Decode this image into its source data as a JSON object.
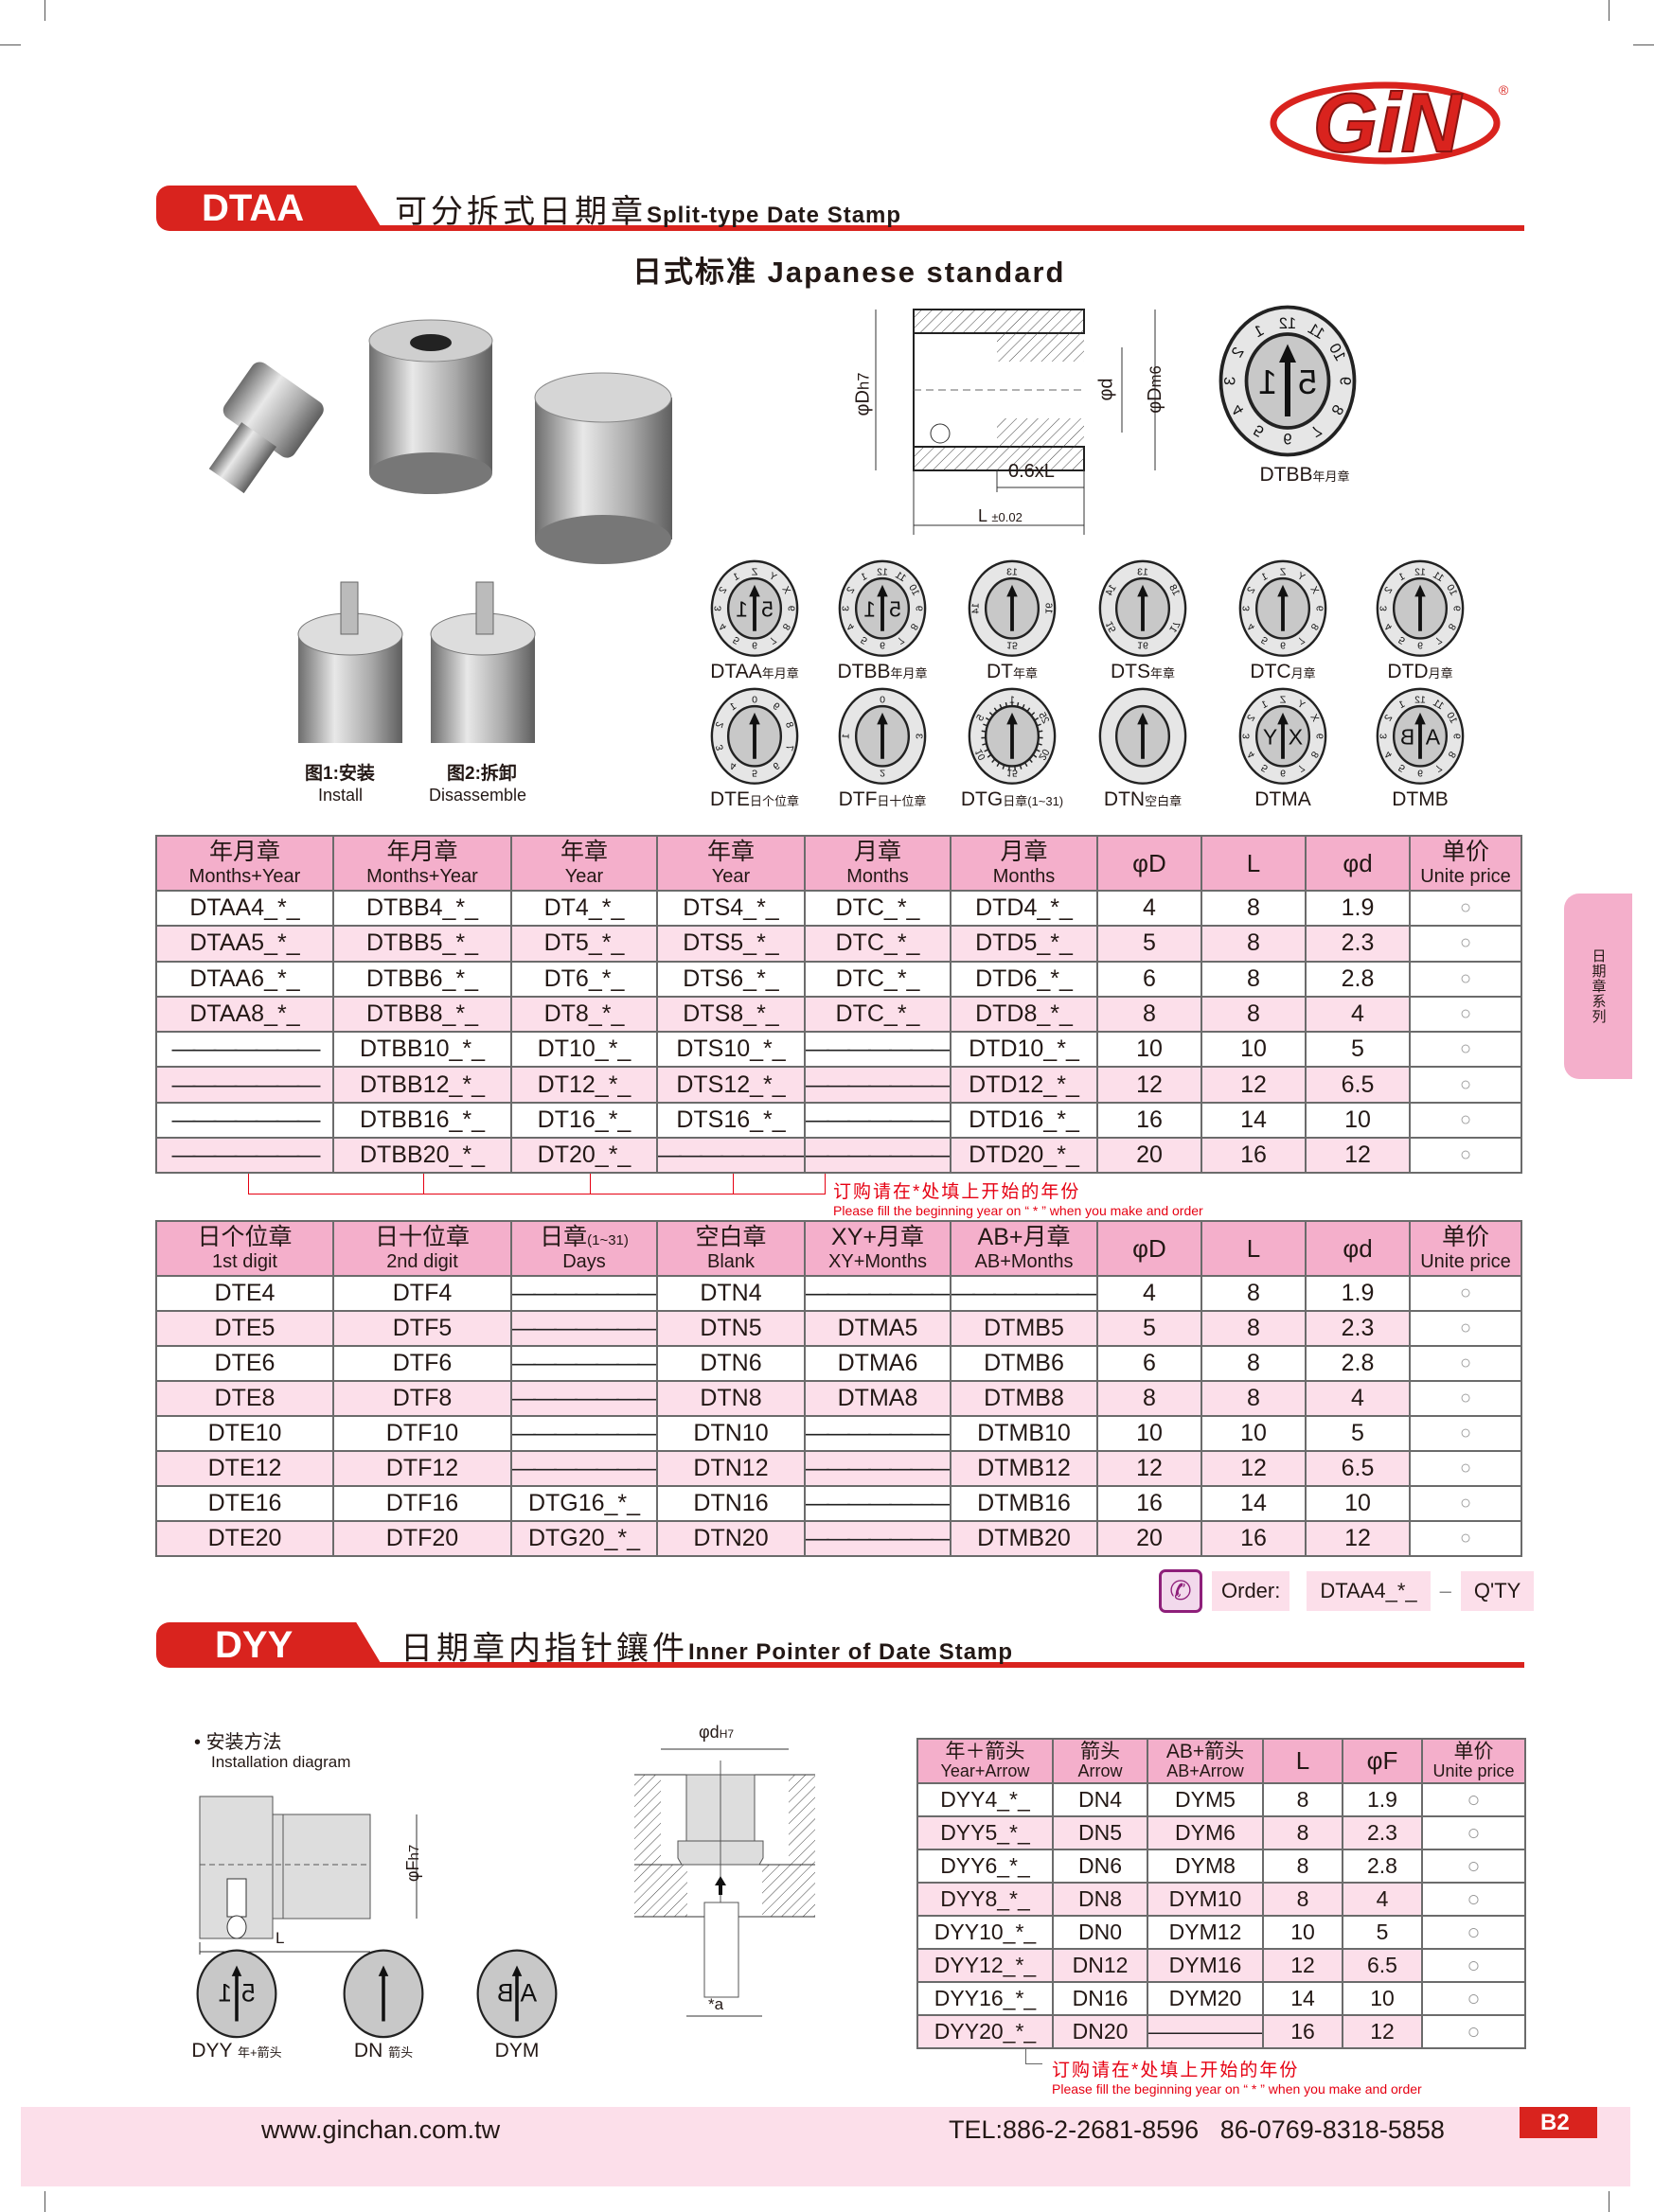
{
  "brand": {
    "logo_text": "GiN",
    "registered": "®"
  },
  "section1": {
    "code": "DTAA",
    "title_cn": "可分拆式日期章",
    "title_en": "Split-type Date Stamp",
    "subtitle": "日式标准 Japanese standard"
  },
  "photos": {
    "install_cn": "图1:安装",
    "install_en": "Install",
    "disassemble_cn": "图2:拆卸",
    "disassemble_en": "Disassemble"
  },
  "drawing": {
    "dh7": "φD",
    "dh7_sub": "h7",
    "dm6": "φD",
    "dm6_sub": "m6",
    "d": "φd",
    "len06": "0.6xL",
    "L": "L",
    "L_tol": "±0.02"
  },
  "big_dial": {
    "code": "DTBB",
    "desc": "年月章",
    "ring": [
      "12",
      "11",
      "10",
      "9",
      "8",
      "7",
      "6",
      "5",
      "4",
      "3",
      "2",
      "1"
    ],
    "center": [
      "1",
      "5"
    ]
  },
  "dials": [
    {
      "code": "DTAA",
      "desc": "年月章",
      "ring": [
        "Z",
        "Y",
        "X",
        "9",
        "8",
        "7",
        "6",
        "5",
        "4",
        "3",
        "2",
        "1"
      ],
      "center": [
        "1",
        "5"
      ]
    },
    {
      "code": "DTBB",
      "desc": "年月章",
      "ring": [
        "12",
        "11",
        "10",
        "9",
        "8",
        "7",
        "6",
        "5",
        "4",
        "3",
        "2",
        "1"
      ],
      "center": [
        "1",
        "5"
      ]
    },
    {
      "code": "DT",
      "desc": "年章",
      "ring": [
        "13",
        "16",
        "15",
        "14"
      ],
      "center": []
    },
    {
      "code": "DTS",
      "desc": "年章",
      "ring": [
        "13",
        "18",
        "17",
        "16",
        "15",
        "14"
      ],
      "center": []
    },
    {
      "code": "DTC",
      "desc": "月章",
      "ring": [
        "Z",
        "Y",
        "X",
        "9",
        "8",
        "7",
        "6",
        "5",
        "4",
        "3",
        "2",
        "1"
      ],
      "center": []
    },
    {
      "code": "DTD",
      "desc": "月章",
      "ring": [
        "12",
        "11",
        "10",
        "9",
        "8",
        "7",
        "6",
        "5",
        "4",
        "3",
        "2",
        "1"
      ],
      "center": []
    },
    {
      "code": "DTE",
      "desc": "日个位章",
      "ring": [
        "0",
        "9",
        "8",
        "7",
        "6",
        "5",
        "4",
        "3",
        "2",
        "1"
      ],
      "center": []
    },
    {
      "code": "DTF",
      "desc": "日十位章",
      "ring": [
        "0",
        "3",
        "2",
        "1"
      ],
      "center": []
    },
    {
      "code": "DTG",
      "desc": "日章(1~31)",
      "ring": [
        "1",
        "25",
        "20",
        "15",
        "10",
        "5"
      ],
      "center": [],
      "ticks": true
    },
    {
      "code": "DTN",
      "desc": "空白章",
      "ring": [],
      "center": []
    },
    {
      "code": "DTMA",
      "desc": "",
      "ring": [
        "Z",
        "Y",
        "X",
        "9",
        "8",
        "7",
        "6",
        "5",
        "4",
        "3",
        "2",
        "1"
      ],
      "center": [
        "Y",
        "X"
      ]
    },
    {
      "code": "DTMB",
      "desc": "",
      "ring": [
        "12",
        "11",
        "10",
        "9",
        "8",
        "7",
        "6",
        "5",
        "4",
        "3",
        "2",
        "1"
      ],
      "center": [
        "B",
        "A"
      ]
    }
  ],
  "table1": {
    "headers": [
      {
        "cn": "年月章",
        "en": "Months+Year"
      },
      {
        "cn": "年月章",
        "en": "Months+Year"
      },
      {
        "cn": "年章",
        "en": "Year"
      },
      {
        "cn": "年章",
        "en": "Year"
      },
      {
        "cn": "月章",
        "en": "Months"
      },
      {
        "cn": "月章",
        "en": "Months"
      },
      {
        "single": "φD"
      },
      {
        "single": "L"
      },
      {
        "single": "φd"
      },
      {
        "cn": "单价",
        "en": "Unite price"
      }
    ],
    "rows": [
      [
        "DTAA4_*_",
        "DTBB4_*_",
        "DT4_*_",
        "DTS4_*_",
        "DTC_*_",
        "DTD4_*_",
        "4",
        "8",
        "1.9",
        "○"
      ],
      [
        "DTAA5_*_",
        "DTBB5_*_",
        "DT5_*_",
        "DTS5_*_",
        "DTC_*_",
        "DTD5_*_",
        "5",
        "8",
        "2.3",
        "○"
      ],
      [
        "DTAA6_*_",
        "DTBB6_*_",
        "DT6_*_",
        "DTS6_*_",
        "DTC_*_",
        "DTD6_*_",
        "6",
        "8",
        "2.8",
        "○"
      ],
      [
        "DTAA8_*_",
        "DTBB8_*_",
        "DT8_*_",
        "DTS8_*_",
        "DTC_*_",
        "DTD8_*_",
        "8",
        "8",
        "4",
        "○"
      ],
      [
        "———————",
        "DTBB10_*_",
        "DT10_*_",
        "DTS10_*_",
        "———————",
        "DTD10_*_",
        "10",
        "10",
        "5",
        "○"
      ],
      [
        "———————",
        "DTBB12_*_",
        "DT12_*_",
        "DTS12_*_",
        "———————",
        "DTD12_*_",
        "12",
        "12",
        "6.5",
        "○"
      ],
      [
        "———————",
        "DTBB16_*_",
        "DT16_*_",
        "DTS16_*_",
        "———————",
        "DTD16_*_",
        "16",
        "14",
        "10",
        "○"
      ],
      [
        "———————",
        "DTBB20_*_",
        "DT20_*_",
        "———————",
        "———————",
        "DTD20_*_",
        "20",
        "16",
        "12",
        "○"
      ]
    ]
  },
  "note": {
    "cn": "订购请在*处填上开始的年份",
    "en": "Please fill the beginning year on “ * ” when you make and order"
  },
  "table2": {
    "headers": [
      {
        "cn": "日个位章",
        "en": "1st digit"
      },
      {
        "cn": "日十位章",
        "en": "2nd digit"
      },
      {
        "cn": "日章",
        "cn_small": "(1~31)",
        "en": "Days"
      },
      {
        "cn": "空白章",
        "en": "Blank"
      },
      {
        "cn": "XY+月章",
        "en": "XY+Months"
      },
      {
        "cn": "AB+月章",
        "en": "AB+Months"
      },
      {
        "single": "φD"
      },
      {
        "single": "L"
      },
      {
        "single": "φd"
      },
      {
        "cn": "单价",
        "en": "Unite price"
      }
    ],
    "rows": [
      [
        "DTE4",
        "DTF4",
        "———————",
        "DTN4",
        "———————",
        "———————",
        "4",
        "8",
        "1.9",
        "○"
      ],
      [
        "DTE5",
        "DTF5",
        "———————",
        "DTN5",
        "DTMA5",
        "DTMB5",
        "5",
        "8",
        "2.3",
        "○"
      ],
      [
        "DTE6",
        "DTF6",
        "———————",
        "DTN6",
        "DTMA6",
        "DTMB6",
        "6",
        "8",
        "2.8",
        "○"
      ],
      [
        "DTE8",
        "DTF8",
        "———————",
        "DTN8",
        "DTMA8",
        "DTMB8",
        "8",
        "8",
        "4",
        "○"
      ],
      [
        "DTE10",
        "DTF10",
        "———————",
        "DTN10",
        "———————",
        "DTMB10",
        "10",
        "10",
        "5",
        "○"
      ],
      [
        "DTE12",
        "DTF12",
        "———————",
        "DTN12",
        "———————",
        "DTMB12",
        "12",
        "12",
        "6.5",
        "○"
      ],
      [
        "DTE16",
        "DTF16",
        "DTG16_*_",
        "DTN16",
        "———————",
        "DTMB16",
        "16",
        "14",
        "10",
        "○"
      ],
      [
        "DTE20",
        "DTF20",
        "DTG20_*_",
        "DTN20",
        "———————",
        "DTMB20",
        "20",
        "16",
        "12",
        "○"
      ]
    ]
  },
  "order": {
    "label": "Order:",
    "example": "DTAA4_*_",
    "dash": "–",
    "qty": "Q'TY",
    "icon": "phone-icon",
    "accent": "#8e1f7a"
  },
  "section2": {
    "code": "DYY",
    "title_cn": "日期章内指针鑲件",
    "title_en": "Inner Pointer of Date Stamp"
  },
  "install": {
    "cn": "安装方法",
    "en": "Installation diagram",
    "fh7": "φF",
    "fh7_sub": "h7",
    "L": "L"
  },
  "section_diagram": {
    "dh7": "φd",
    "dh7_sub": "H7",
    "a": "*a"
  },
  "inner_dials": [
    {
      "code": "DYY",
      "desc": "年+箭头",
      "center": [
        "1",
        "5"
      ]
    },
    {
      "code": "DN",
      "desc": "箭头",
      "center": []
    },
    {
      "code": "DYM",
      "desc": "",
      "center": [
        "B",
        "A"
      ]
    }
  ],
  "table3": {
    "headers": [
      {
        "cn": "年＋箭头",
        "en": "Year+Arrow"
      },
      {
        "cn": "箭头",
        "en": "Arrow"
      },
      {
        "cn": "AB+箭头",
        "en": "AB+Arrow"
      },
      {
        "single": "L"
      },
      {
        "single": "φF"
      },
      {
        "cn": "单价",
        "en": "Unite price"
      }
    ],
    "rows": [
      [
        "DYY4_*_",
        "DN4",
        "DYM5",
        "8",
        "1.9",
        "○"
      ],
      [
        "DYY5_*_",
        "DN5",
        "DYM6",
        "8",
        "2.3",
        "○"
      ],
      [
        "DYY6_*_",
        "DN6",
        "DYM8",
        "8",
        "2.8",
        "○"
      ],
      [
        "DYY8_*_",
        "DN8",
        "DYM10",
        "8",
        "4",
        "○"
      ],
      [
        "DYY10_*_",
        "DN0",
        "DYM12",
        "10",
        "5",
        "○"
      ],
      [
        "DYY12_*_",
        "DN12",
        "DYM16",
        "12",
        "6.5",
        "○"
      ],
      [
        "DYY16_*_",
        "DN16",
        "DYM20",
        "14",
        "10",
        "○"
      ],
      [
        "DYY20_*_",
        "DN20",
        "———————",
        "16",
        "12",
        "○"
      ]
    ]
  },
  "side_tab": "日期章系列",
  "footer": {
    "website": "www.ginchan.com.tw",
    "tel": "TEL:886-2-2681-8596   86-0769-8318-5858",
    "page": "B2"
  },
  "colors": {
    "red": "#d9231e",
    "header_pink": "#f4afcb",
    "row_pink": "#fcdfea",
    "note_red": "#e60012"
  }
}
